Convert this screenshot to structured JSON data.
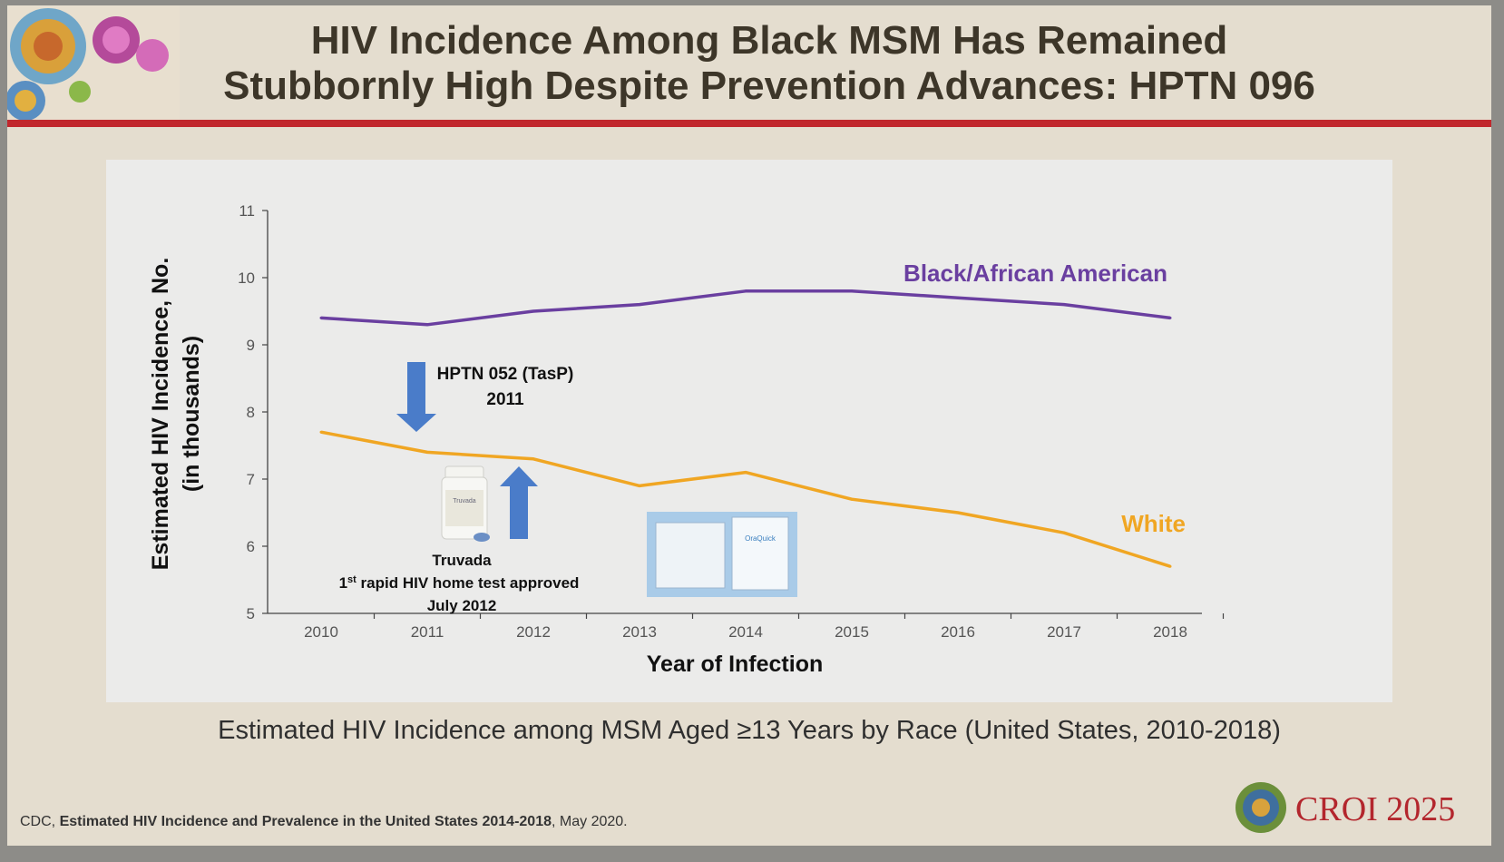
{
  "slide": {
    "title_line1": "HIV Incidence Among Black MSM Has Remained",
    "title_line2": "Stubbornly High Despite Prevention Advances: HPTN 096",
    "caption": "Estimated HIV Incidence among MSM Aged ≥13 Years by Race (United States, 2010-2018)",
    "citation_source": "CDC, ",
    "citation_title": "Estimated HIV Incidence and Prevalence in the United States 2014-2018",
    "citation_date": ", May 2020.",
    "logo_text": "CROI 2025"
  },
  "colors": {
    "title_rule": "#c1272d",
    "black_series": "#6a3fa0",
    "white_series": "#f0a623",
    "arrow": "#4a7cc9",
    "logo": "#b3262d"
  },
  "chart_data": {
    "type": "line",
    "xlabel": "Year of Infection",
    "ylabel_line1": "Estimated HIV Incidence, No.",
    "ylabel_line2": "(in thousands)",
    "x": [
      2010,
      2011,
      2012,
      2013,
      2014,
      2015,
      2016,
      2017,
      2018
    ],
    "ylim": [
      5,
      11
    ],
    "yticks": [
      5,
      6,
      7,
      8,
      9,
      10,
      11
    ],
    "grid": false,
    "series": [
      {
        "name": "Black/African American",
        "color": "#6a3fa0",
        "values": [
          9.4,
          9.3,
          9.5,
          9.6,
          9.8,
          9.8,
          9.7,
          9.6,
          9.4
        ]
      },
      {
        "name": "White",
        "color": "#f0a623",
        "values": [
          7.7,
          7.4,
          7.3,
          6.9,
          7.1,
          6.7,
          6.5,
          6.2,
          5.7
        ]
      }
    ],
    "annotations": {
      "hptn052_line1": "HPTN 052 (TasP)",
      "hptn052_line2": "2011",
      "truvada_line1": "Truvada",
      "truvada_line2a": "1",
      "truvada_line2_sup": "st",
      "truvada_line2b": " rapid HIV home test  approved",
      "truvada_line3": "July 2012"
    },
    "pill_label": "Truvada",
    "home_test_label": "OraQuick"
  }
}
